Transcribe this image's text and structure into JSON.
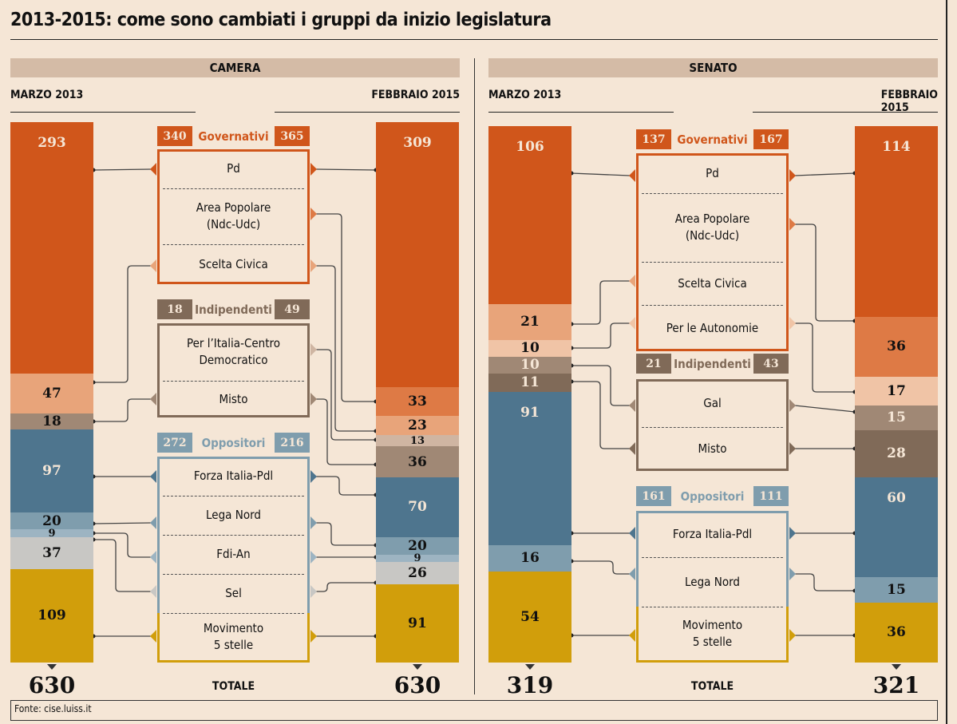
{
  "title": "2013-2015: come sono cambiati i gruppi da inizio legislatura",
  "footer": "Fonte: cise.luiss.it",
  "total_label": "TOTALE",
  "chart_data": [
    {
      "type": "bar",
      "stacked": true,
      "title": "CAMERA",
      "categories": [
        "MARZO 2013",
        "FEBBRAIO 2015"
      ],
      "totals": [
        "630",
        "630"
      ],
      "groups": [
        {
          "name": "Governativi",
          "values": [
            "340",
            "365"
          ],
          "color": "#D0561B",
          "series": [
            "Pd",
            "Area Popolare\n(Ndc-Udc)",
            "Scelta Civica"
          ]
        },
        {
          "name": "Indipendenti",
          "values": [
            "18",
            "49"
          ],
          "color": "#806A58",
          "series": [
            "Per l’Italia-Centro\nDemocratico",
            "Misto"
          ]
        },
        {
          "name": "Oppositori",
          "values": [
            "272",
            "216"
          ],
          "color": "#7F9DAD",
          "series": [
            "Forza Italia-Pdl",
            "Lega Nord",
            "Fdi-An",
            "Sel",
            "Movimento\n5 stelle"
          ]
        }
      ],
      "series": [
        {
          "name": "Pd",
          "values": [
            293,
            309
          ],
          "color": "#D0561B",
          "label_color": "#F5E6D6"
        },
        {
          "name": "Area Popolare\n(Ndc-Udc)",
          "values": [
            null,
            33
          ],
          "color": "#DE7A45",
          "label_color": "#111"
        },
        {
          "name": "Scelta Civica",
          "values": [
            47,
            23
          ],
          "color": "#E8A47A",
          "label_color": "#111"
        },
        {
          "name": "Per l’Italia-Centro\nDemocratico",
          "values": [
            null,
            13
          ],
          "color": "#CFB5A2",
          "label_color": "#111"
        },
        {
          "name": "Misto",
          "values": [
            18,
            36
          ],
          "color": "#A08875",
          "label_color": "#111"
        },
        {
          "name": "Forza Italia-Pdl",
          "values": [
            97,
            70
          ],
          "color": "#4E758E",
          "label_color": "#F5E6D6"
        },
        {
          "name": "Lega Nord",
          "values": [
            20,
            20
          ],
          "color": "#7F9DAD",
          "label_color": "#111"
        },
        {
          "name": "Fdi-An",
          "values": [
            9,
            9
          ],
          "color": "#9DB4C2",
          "label_color": "#111"
        },
        {
          "name": "Sel",
          "values": [
            37,
            26
          ],
          "color": "#C8C7C4",
          "label_color": "#111"
        },
        {
          "name": "Movimento\n5 stelle",
          "values": [
            109,
            91
          ],
          "color": "#D19E0B",
          "label_color": "#111"
        }
      ]
    },
    {
      "type": "bar",
      "stacked": true,
      "title": "SENATO",
      "categories": [
        "MARZO 2013",
        "FEBBRAIO 2015"
      ],
      "totals": [
        "319",
        "321"
      ],
      "groups": [
        {
          "name": "Governativi",
          "values": [
            "137",
            "167"
          ],
          "color": "#D0561B",
          "series": [
            "Pd",
            "Area Popolare\n(Ndc-Udc)",
            "Scelta Civica",
            "Per le Autonomie"
          ]
        },
        {
          "name": "Indipendenti",
          "values": [
            "21",
            "43"
          ],
          "color": "#806A58",
          "series": [
            "Gal",
            "Misto"
          ]
        },
        {
          "name": "Oppositori",
          "values": [
            "161",
            "111"
          ],
          "color": "#7F9DAD",
          "series": [
            "Forza Italia-Pdl",
            "Lega Nord",
            "Movimento\n5 stelle"
          ]
        }
      ],
      "series": [
        {
          "name": "Pd",
          "values": [
            106,
            114
          ],
          "color": "#D0561B",
          "label_color": "#F5E6D6"
        },
        {
          "name": "Area Popolare\n(Ndc-Udc)",
          "values": [
            null,
            36
          ],
          "color": "#DE7A45",
          "label_color": "#111"
        },
        {
          "name": "Scelta Civica",
          "values": [
            21,
            null
          ],
          "color": "#E8A47A",
          "label_color": "#111"
        },
        {
          "name": "Per le Autonomie",
          "values": [
            10,
            17
          ],
          "color": "#F0C4A6",
          "label_color": "#111"
        },
        {
          "name": "Gal",
          "values": [
            10,
            15
          ],
          "color": "#A08875",
          "label_color": "#F5E6D6"
        },
        {
          "name": "Misto",
          "values": [
            11,
            28
          ],
          "color": "#806A58",
          "label_color": "#F5E6D6"
        },
        {
          "name": "Forza Italia-Pdl",
          "values": [
            91,
            60
          ],
          "color": "#4E758E",
          "label_color": "#F5E6D6"
        },
        {
          "name": "Lega Nord",
          "values": [
            16,
            15
          ],
          "color": "#7F9DAD",
          "label_color": "#111"
        },
        {
          "name": "Movimento\n5 stelle",
          "values": [
            54,
            36
          ],
          "color": "#D19E0B",
          "label_color": "#111"
        }
      ]
    }
  ]
}
